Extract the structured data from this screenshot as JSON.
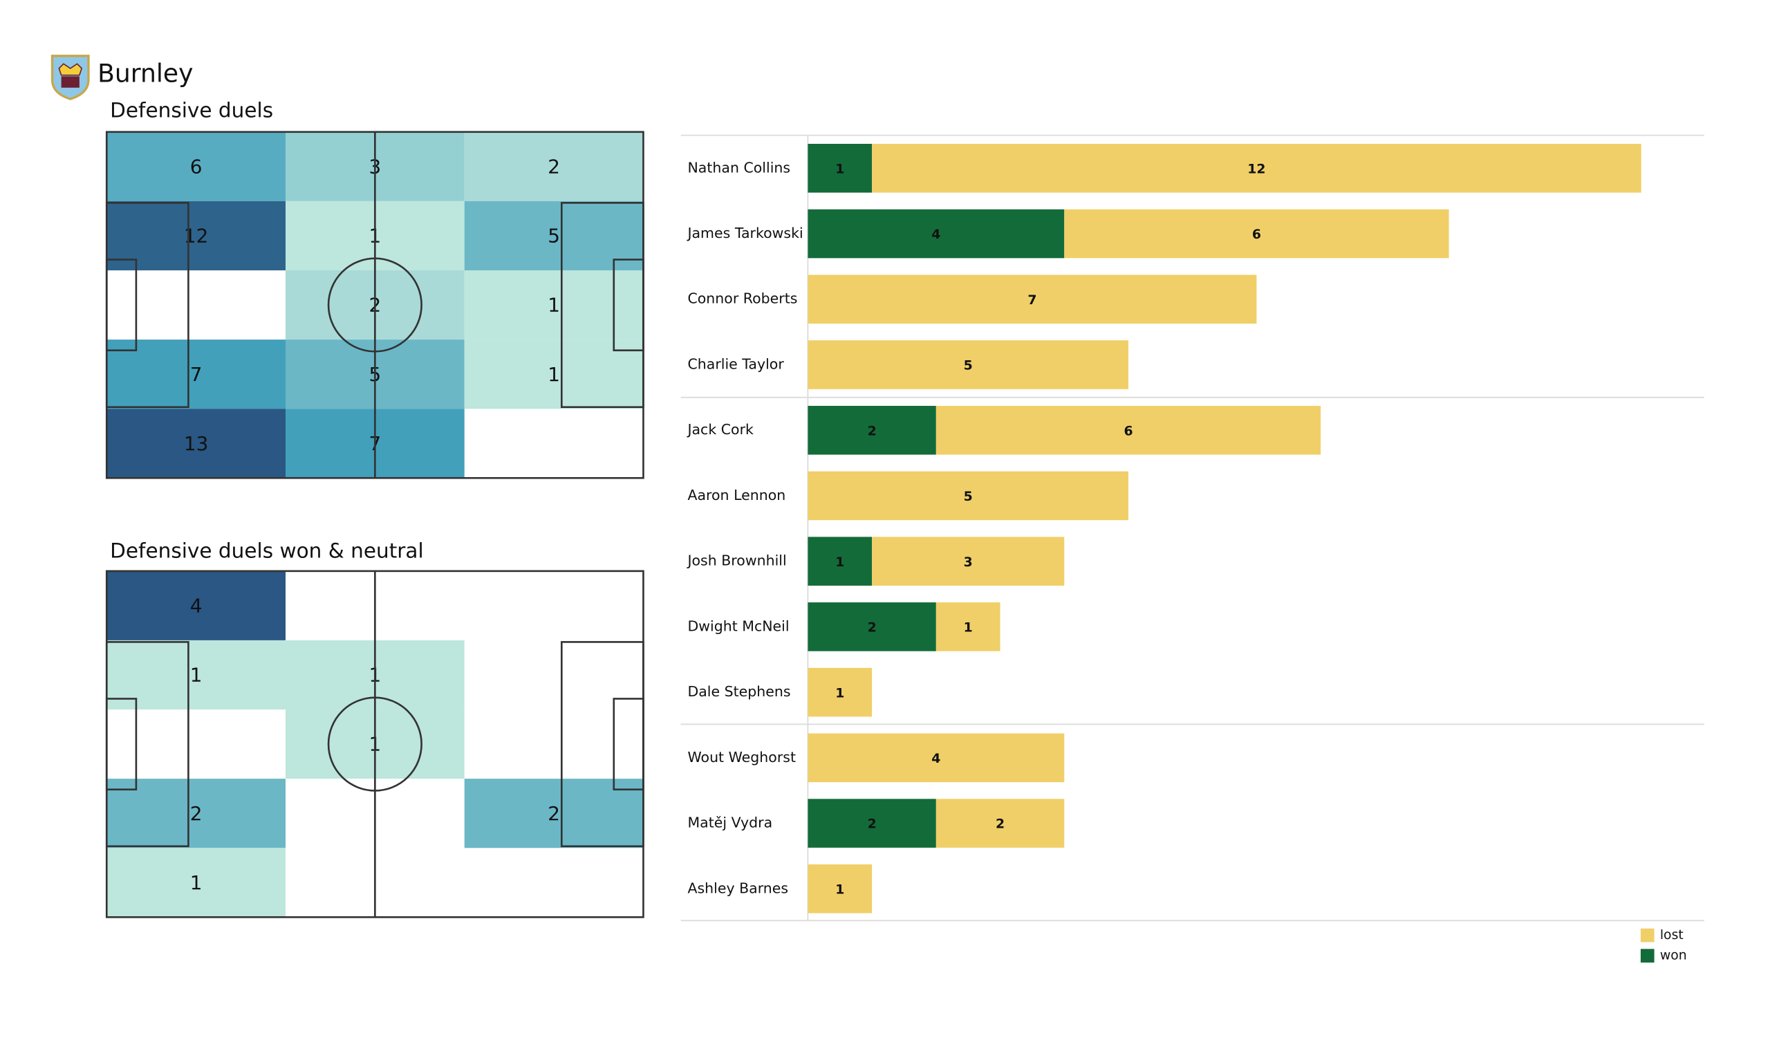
{
  "team": "Burnley",
  "heatmaps": [
    {
      "title": "Defensive duels",
      "values": [
        [
          6,
          3,
          2
        ],
        [
          12,
          1,
          5
        ],
        [
          null,
          2,
          1
        ],
        [
          7,
          5,
          1
        ],
        [
          13,
          7,
          null
        ]
      ]
    },
    {
      "title": "Defensive duels won & neutral",
      "values": [
        [
          4,
          null,
          null
        ],
        [
          1,
          1,
          null
        ],
        [
          null,
          1,
          null
        ],
        [
          2,
          null,
          2
        ],
        [
          1,
          null,
          null
        ]
      ]
    }
  ],
  "heatmap_colors": [
    "#bde6dd",
    "#42a0bb",
    "#2a5783"
  ],
  "chart_data": {
    "type": "bar",
    "orientation": "horizontal",
    "stacked": true,
    "categories": [
      "Nathan Collins",
      "James  Tarkowski",
      "Connor Roberts",
      "Charlie Taylor",
      "Jack Cork",
      "Aaron  Lennon",
      "Josh Brownhill",
      "Dwight McNeil",
      "Dale Stephens",
      "Wout Weghorst",
      "Matěj Vydra",
      "Ashley Barnes"
    ],
    "series": [
      {
        "name": "won",
        "color": "#136b39",
        "values": [
          1,
          4,
          null,
          null,
          2,
          null,
          1,
          2,
          null,
          null,
          2,
          null
        ]
      },
      {
        "name": "lost",
        "color": "#f0cf68",
        "values": [
          12,
          6,
          7,
          5,
          6,
          5,
          3,
          1,
          1,
          4,
          2,
          1
        ]
      }
    ],
    "xlim": [
      0,
      14
    ],
    "legend": "lower right"
  }
}
